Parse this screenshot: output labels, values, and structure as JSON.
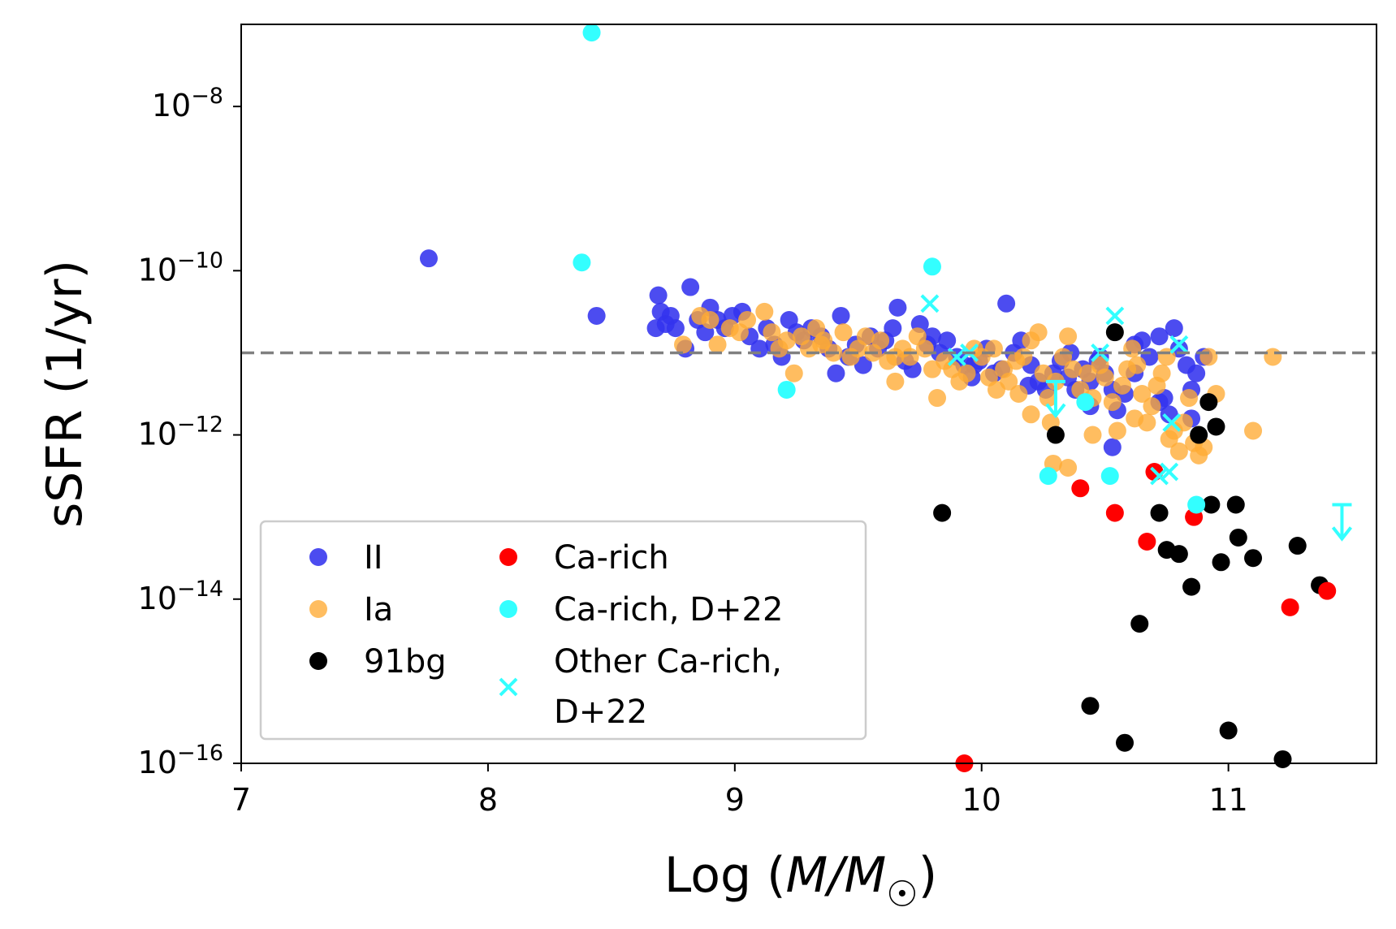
{
  "chart_data": {
    "type": "scatter",
    "xlabel": "Log (M/M☉)",
    "xlabel_parts": {
      "prefix": "Log (",
      "math": "M/M",
      "sub": "☉",
      "suffix": ")"
    },
    "ylabel": "sSFR (1/yr)",
    "xlim": [
      7,
      11.6
    ],
    "ylim_log10": [
      -16,
      -7.0
    ],
    "yscale": "log",
    "x_ticks": [
      {
        "value": 7,
        "label": "7"
      },
      {
        "value": 8,
        "label": "8"
      },
      {
        "value": 9,
        "label": "9"
      },
      {
        "value": 10,
        "label": "10"
      },
      {
        "value": 11,
        "label": "11"
      }
    ],
    "y_ticks": [
      {
        "exp": -8,
        "base": "10",
        "sup": "−8"
      },
      {
        "exp": -10,
        "base": "10",
        "sup": "−10"
      },
      {
        "exp": -12,
        "base": "10",
        "sup": "−12"
      },
      {
        "exp": -14,
        "base": "10",
        "sup": "−14"
      },
      {
        "exp": -16,
        "base": "10",
        "sup": "−16"
      }
    ],
    "reference_line": {
      "log10_ssfr": -11,
      "style": "dashed",
      "color": "#808080"
    },
    "legend": {
      "placement": "lower-left",
      "columns": [
        [
          "II",
          "Ia",
          "91bg"
        ],
        [
          "Ca-rich",
          "Ca-rich, D+22",
          "Other Ca-rich, D+22"
        ]
      ],
      "labels": {
        "II": "II",
        "Ia": "Ia",
        "91bg": "91bg",
        "Ca-rich": "Ca-rich",
        "Ca-rich, D+22": "Ca-rich, D+22",
        "Other Ca-rich, D+22": [
          "Other Ca-rich,",
          "D+22"
        ]
      }
    },
    "series": [
      {
        "name": "II",
        "marker": "circle",
        "color": "#3333ee",
        "alpha": 0.88,
        "points": [
          [
            7.76,
            -9.85
          ],
          [
            8.44,
            -10.55
          ],
          [
            8.68,
            -10.7
          ],
          [
            8.69,
            -10.3
          ],
          [
            8.7,
            -10.5
          ],
          [
            8.72,
            -10.65
          ],
          [
            8.74,
            -10.55
          ],
          [
            8.76,
            -10.7
          ],
          [
            8.8,
            -10.95
          ],
          [
            8.82,
            -10.2
          ],
          [
            8.85,
            -10.6
          ],
          [
            8.88,
            -10.75
          ],
          [
            8.9,
            -10.45
          ],
          [
            8.93,
            -10.6
          ],
          [
            8.96,
            -10.7
          ],
          [
            8.99,
            -10.55
          ],
          [
            9.03,
            -10.5
          ],
          [
            9.06,
            -10.8
          ],
          [
            9.1,
            -10.95
          ],
          [
            9.13,
            -10.7
          ],
          [
            9.16,
            -10.9
          ],
          [
            9.19,
            -11.05
          ],
          [
            9.22,
            -10.6
          ],
          [
            9.25,
            -10.75
          ],
          [
            9.28,
            -10.85
          ],
          [
            9.31,
            -10.7
          ],
          [
            9.35,
            -10.8
          ],
          [
            9.38,
            -10.95
          ],
          [
            9.41,
            -11.25
          ],
          [
            9.43,
            -10.55
          ],
          [
            9.46,
            -11.05
          ],
          [
            9.49,
            -10.9
          ],
          [
            9.52,
            -11.15
          ],
          [
            9.55,
            -10.8
          ],
          [
            9.58,
            -10.95
          ],
          [
            9.61,
            -10.85
          ],
          [
            9.64,
            -10.7
          ],
          [
            9.66,
            -10.45
          ],
          [
            9.69,
            -11.1
          ],
          [
            9.72,
            -11.2
          ],
          [
            9.75,
            -10.65
          ],
          [
            9.78,
            -10.9
          ],
          [
            9.8,
            -10.8
          ],
          [
            9.83,
            -11.0
          ],
          [
            9.86,
            -10.85
          ],
          [
            9.9,
            -11.05
          ],
          [
            9.93,
            -11.15
          ],
          [
            9.96,
            -11.3
          ],
          [
            9.99,
            -11.1
          ],
          [
            10.02,
            -10.95
          ],
          [
            10.05,
            -11.25
          ],
          [
            10.08,
            -11.2
          ],
          [
            10.1,
            -10.4
          ],
          [
            10.13,
            -11.0
          ],
          [
            10.16,
            -10.85
          ],
          [
            10.2,
            -11.15
          ],
          [
            10.23,
            -11.35
          ],
          [
            10.26,
            -11.45
          ],
          [
            10.29,
            -11.25
          ],
          [
            10.32,
            -11.1
          ],
          [
            10.35,
            -11.3
          ],
          [
            10.38,
            -11.45
          ],
          [
            10.41,
            -11.2
          ],
          [
            10.44,
            -11.35
          ],
          [
            10.47,
            -11.1
          ],
          [
            10.5,
            -11.25
          ],
          [
            10.53,
            -11.45
          ],
          [
            10.55,
            -11.7
          ],
          [
            10.53,
            -12.15
          ],
          [
            10.58,
            -11.5
          ],
          [
            10.62,
            -11.25
          ],
          [
            10.65,
            -10.85
          ],
          [
            10.68,
            -11.05
          ],
          [
            10.72,
            -10.8
          ],
          [
            10.74,
            -11.55
          ],
          [
            10.76,
            -11.75
          ],
          [
            10.78,
            -10.7
          ],
          [
            10.8,
            -10.95
          ],
          [
            10.83,
            -11.15
          ],
          [
            10.85,
            -11.45
          ],
          [
            10.87,
            -11.25
          ],
          [
            10.9,
            -11.05
          ],
          [
            10.72,
            -11.6
          ],
          [
            10.62,
            -10.9
          ],
          [
            10.48,
            -11.05
          ],
          [
            10.36,
            -11.0
          ],
          [
            10.19,
            -11.4
          ],
          [
            9.97,
            -11.15
          ],
          [
            10.44,
            -11.65
          ],
          [
            10.85,
            -11.8
          ]
        ]
      },
      {
        "name": "Ia",
        "marker": "circle",
        "color": "#ffaa33",
        "alpha": 0.78,
        "points": [
          [
            8.79,
            -10.9
          ],
          [
            8.86,
            -10.55
          ],
          [
            8.9,
            -10.6
          ],
          [
            8.93,
            -10.9
          ],
          [
            8.98,
            -10.7
          ],
          [
            9.02,
            -10.75
          ],
          [
            9.05,
            -10.6
          ],
          [
            9.12,
            -10.5
          ],
          [
            9.15,
            -10.75
          ],
          [
            9.18,
            -10.95
          ],
          [
            9.21,
            -10.85
          ],
          [
            9.24,
            -11.25
          ],
          [
            9.27,
            -10.8
          ],
          [
            9.3,
            -10.95
          ],
          [
            9.33,
            -10.7
          ],
          [
            9.36,
            -10.85
          ],
          [
            9.4,
            -11.0
          ],
          [
            9.44,
            -10.75
          ],
          [
            9.47,
            -11.05
          ],
          [
            9.5,
            -10.95
          ],
          [
            9.53,
            -10.8
          ],
          [
            9.56,
            -11.0
          ],
          [
            9.59,
            -10.85
          ],
          [
            9.62,
            -11.1
          ],
          [
            9.65,
            -11.35
          ],
          [
            9.68,
            -10.95
          ],
          [
            9.71,
            -11.05
          ],
          [
            9.74,
            -10.8
          ],
          [
            9.77,
            -10.95
          ],
          [
            9.8,
            -11.2
          ],
          [
            9.82,
            -11.55
          ],
          [
            9.85,
            -11.1
          ],
          [
            9.88,
            -11.2
          ],
          [
            9.91,
            -11.35
          ],
          [
            9.94,
            -11.25
          ],
          [
            9.97,
            -10.95
          ],
          [
            10.0,
            -11.05
          ],
          [
            10.03,
            -11.3
          ],
          [
            10.06,
            -11.45
          ],
          [
            10.09,
            -11.2
          ],
          [
            10.11,
            -11.35
          ],
          [
            10.14,
            -11.1
          ],
          [
            10.17,
            -11.05
          ],
          [
            10.2,
            -10.85
          ],
          [
            10.23,
            -10.75
          ],
          [
            10.25,
            -11.25
          ],
          [
            10.27,
            -11.55
          ],
          [
            10.3,
            -11.35
          ],
          [
            10.33,
            -11.05
          ],
          [
            10.35,
            -10.8
          ],
          [
            10.37,
            -11.2
          ],
          [
            10.4,
            -11.45
          ],
          [
            10.43,
            -11.25
          ],
          [
            10.45,
            -11.55
          ],
          [
            10.48,
            -11.15
          ],
          [
            10.5,
            -11.3
          ],
          [
            10.53,
            -11.6
          ],
          [
            10.55,
            -11.95
          ],
          [
            10.57,
            -11.4
          ],
          [
            10.59,
            -11.2
          ],
          [
            10.61,
            -10.95
          ],
          [
            10.63,
            -11.15
          ],
          [
            10.65,
            -11.5
          ],
          [
            10.67,
            -11.85
          ],
          [
            10.69,
            -11.65
          ],
          [
            10.71,
            -11.4
          ],
          [
            10.73,
            -11.25
          ],
          [
            10.75,
            -11.05
          ],
          [
            10.76,
            -12.05
          ],
          [
            10.78,
            -11.95
          ],
          [
            10.8,
            -12.2
          ],
          [
            10.82,
            -11.85
          ],
          [
            10.84,
            -11.55
          ],
          [
            10.86,
            -12.1
          ],
          [
            10.88,
            -12.25
          ],
          [
            10.9,
            -12.15
          ],
          [
            10.92,
            -11.05
          ],
          [
            10.29,
            -12.35
          ],
          [
            10.35,
            -12.4
          ],
          [
            11.1,
            -11.95
          ],
          [
            11.18,
            -11.05
          ],
          [
            10.2,
            -11.75
          ],
          [
            10.28,
            -11.85
          ],
          [
            10.45,
            -12.0
          ],
          [
            10.62,
            -11.8
          ],
          [
            10.95,
            -11.5
          ],
          [
            9.35,
            -10.9
          ],
          [
            9.65,
            -11.05
          ],
          [
            10.05,
            -10.95
          ],
          [
            10.15,
            -11.5
          ]
        ]
      },
      {
        "name": "91bg",
        "marker": "circle",
        "color": "#000000",
        "alpha": 1.0,
        "points": [
          [
            9.84,
            -12.95
          ],
          [
            10.3,
            -12.0
          ],
          [
            10.44,
            -15.3
          ],
          [
            10.54,
            -10.75
          ],
          [
            10.58,
            -15.75
          ],
          [
            10.64,
            -14.3
          ],
          [
            10.72,
            -12.95
          ],
          [
            10.75,
            -13.4
          ],
          [
            10.8,
            -13.45
          ],
          [
            10.85,
            -13.85
          ],
          [
            10.88,
            -12.0
          ],
          [
            10.92,
            -11.6
          ],
          [
            10.93,
            -12.85
          ],
          [
            10.95,
            -11.9
          ],
          [
            10.97,
            -13.55
          ],
          [
            11.0,
            -15.6
          ],
          [
            11.03,
            -12.85
          ],
          [
            11.04,
            -13.25
          ],
          [
            11.1,
            -13.5
          ],
          [
            11.22,
            -15.95
          ],
          [
            11.28,
            -13.35
          ],
          [
            11.37,
            -13.83
          ]
        ]
      },
      {
        "name": "Ca-rich",
        "marker": "circle",
        "color": "#ff0000",
        "alpha": 1.0,
        "points": [
          [
            9.93,
            -16.0
          ],
          [
            10.4,
            -12.65
          ],
          [
            10.54,
            -12.95
          ],
          [
            10.67,
            -13.3
          ],
          [
            10.7,
            -12.45
          ],
          [
            10.86,
            -13.0
          ],
          [
            11.25,
            -14.1
          ],
          [
            11.4,
            -13.9
          ]
        ]
      },
      {
        "name": "Ca-rich, D+22",
        "marker": "circle",
        "color": "#33ffff",
        "alpha": 1.0,
        "points": [
          [
            8.42,
            -7.1
          ],
          [
            8.38,
            -9.9
          ],
          [
            9.21,
            -11.45
          ],
          [
            9.8,
            -9.95
          ],
          [
            10.27,
            -12.5
          ],
          [
            10.42,
            -11.6
          ],
          [
            10.52,
            -12.5
          ],
          [
            10.87,
            -12.85
          ]
        ]
      },
      {
        "name": "Other Ca-rich, D+22",
        "marker": "x",
        "color": "#33ffff",
        "alpha": 1.0,
        "points": [
          [
            9.79,
            -10.4
          ],
          [
            9.9,
            -11.05
          ],
          [
            9.95,
            -11.0
          ],
          [
            10.48,
            -11.0
          ],
          [
            10.54,
            -10.55
          ],
          [
            10.72,
            -12.5
          ],
          [
            10.76,
            -12.45
          ],
          [
            10.77,
            -11.85
          ],
          [
            10.8,
            -10.9
          ]
        ]
      },
      {
        "name": "upper-limits",
        "marker": "down-arrow",
        "color": "#33ffff",
        "alpha": 1.0,
        "points": [
          [
            10.3,
            -11.35
          ],
          [
            11.46,
            -12.85
          ]
        ]
      }
    ]
  }
}
